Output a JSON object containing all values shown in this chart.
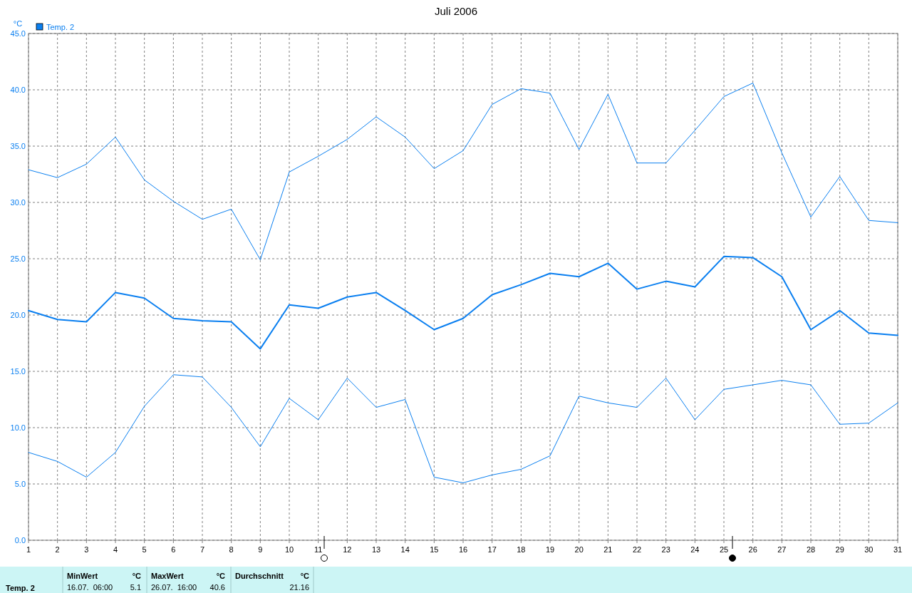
{
  "chart_data": {
    "type": "line",
    "title": "Juli 2006",
    "ylabel": "°C",
    "x": [
      1,
      2,
      3,
      4,
      5,
      6,
      7,
      8,
      9,
      10,
      11,
      12,
      13,
      14,
      15,
      16,
      17,
      18,
      19,
      20,
      21,
      22,
      23,
      24,
      25,
      26,
      27,
      28,
      29,
      30,
      31
    ],
    "series": [
      {
        "color": "#0a7ff0",
        "values": [
          32.9,
          32.2,
          33.4,
          35.8,
          32.0,
          30.1,
          28.5,
          29.4,
          24.9,
          32.7,
          34.1,
          35.6,
          37.6,
          35.8,
          33.0,
          34.6,
          38.7,
          40.1,
          39.7,
          34.7,
          39.6,
          33.5,
          33.5,
          36.4,
          39.4,
          40.6,
          34.4,
          28.7,
          32.3,
          28.4,
          28.2
        ]
      },
      {
        "name": "Temp. 2",
        "color": "#0a7ff0",
        "values": [
          20.4,
          19.6,
          19.4,
          22.0,
          21.5,
          19.7,
          19.5,
          19.4,
          17.0,
          20.9,
          20.6,
          21.6,
          22.0,
          20.4,
          18.7,
          19.7,
          21.8,
          22.7,
          23.7,
          23.4,
          24.6,
          22.3,
          23.0,
          22.5,
          25.2,
          25.1,
          23.4,
          18.7,
          20.4,
          18.4,
          18.2
        ]
      },
      {
        "color": "#0a7ff0",
        "values": [
          7.8,
          7.0,
          5.6,
          7.8,
          11.9,
          14.7,
          14.5,
          11.8,
          8.3,
          12.6,
          10.7,
          14.4,
          11.8,
          12.5,
          5.6,
          5.1,
          5.8,
          6.3,
          7.5,
          12.8,
          12.2,
          11.8,
          14.4,
          10.7,
          13.4,
          13.8,
          14.2,
          13.8,
          10.3,
          10.4,
          12.2
        ]
      }
    ],
    "xlim": [
      1,
      31
    ],
    "xticks": [
      1,
      2,
      3,
      4,
      5,
      6,
      7,
      8,
      9,
      10,
      11,
      12,
      13,
      14,
      15,
      16,
      17,
      18,
      19,
      20,
      21,
      22,
      23,
      24,
      25,
      26,
      27,
      28,
      29,
      30,
      31
    ],
    "ylim": [
      0,
      45
    ],
    "yticks": [
      {
        "value": 0,
        "label": "0.0"
      },
      {
        "value": 5,
        "label": "5.0"
      },
      {
        "value": 10,
        "label": "10.0"
      },
      {
        "value": 15,
        "label": "15.0"
      },
      {
        "value": 20,
        "label": "20.0"
      },
      {
        "value": 25,
        "label": "25.0"
      },
      {
        "value": 30,
        "label": "30.0"
      },
      {
        "value": 35,
        "label": "35.0"
      },
      {
        "value": 40,
        "label": "40.0"
      },
      {
        "value": 45,
        "label": "45.0"
      }
    ],
    "grid": true,
    "legend": "top left",
    "marker": "none",
    "line_style": "solid",
    "annotations": [
      "Temp. 2",
      "MinWert",
      "°C",
      "16.07.  06:00",
      "5.1",
      "MaxWert",
      "°C",
      "26.07.  16:00",
      "40.6",
      "Durchschnitt",
      "°C",
      "21.16"
    ]
  }
}
